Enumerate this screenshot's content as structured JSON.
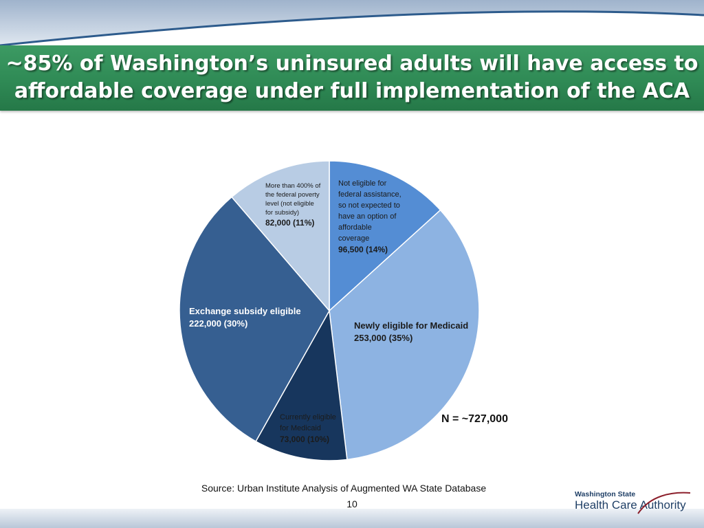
{
  "slide": {
    "title_line1": "~85% of Washington’s uninsured adults will have access to",
    "title_line2": "affordable coverage under full implementation of the ACA",
    "source": "Source: Urban Institute Analysis of Augmented WA State Database",
    "page_number": "10",
    "logo_line1": "Washington State",
    "logo_line2": "Health Care Authority"
  },
  "colors": {
    "title_bar": "#2f8a55",
    "slices": [
      "#548dd4",
      "#8db3e2",
      "#17365d",
      "#365f91",
      "#b8cce4"
    ]
  },
  "chart_data": {
    "type": "pie",
    "total_label": "N = ~727,000",
    "slices": [
      {
        "name": "Not eligible for federal assistance, so not expected to have an option of affordable coverage",
        "desc_lines": [
          "Not eligible for",
          "federal assistance,",
          "so not expected to",
          "have an option of",
          "affordable",
          "coverage"
        ],
        "value": 96500,
        "value_label": "96,500 (14%)",
        "percent": 14
      },
      {
        "name": "Newly eligible for Medicaid",
        "desc_lines": [
          "Newly eligible for Medicaid"
        ],
        "value": 253000,
        "value_label": "253,000 (35%)",
        "percent": 35
      },
      {
        "name": "Currently eligible for Medicaid",
        "desc_lines": [
          "Currently eligible",
          "for Medicaid"
        ],
        "value": 73000,
        "value_label": "73,000 (10%)",
        "percent": 10
      },
      {
        "name": "Exchange subsidy eligible",
        "desc_lines": [
          "Exchange subsidy eligible"
        ],
        "value": 222000,
        "value_label": "222,000 (30%)",
        "percent": 30
      },
      {
        "name": "More than 400% of the federal poverty level (not eligible for subsidy)",
        "desc_lines": [
          "More than 400% of",
          "the federal poverty",
          "level (not eligible",
          "for subsidy)"
        ],
        "value": 82000,
        "value_label": "82,000 (11%)",
        "percent": 11
      }
    ]
  }
}
